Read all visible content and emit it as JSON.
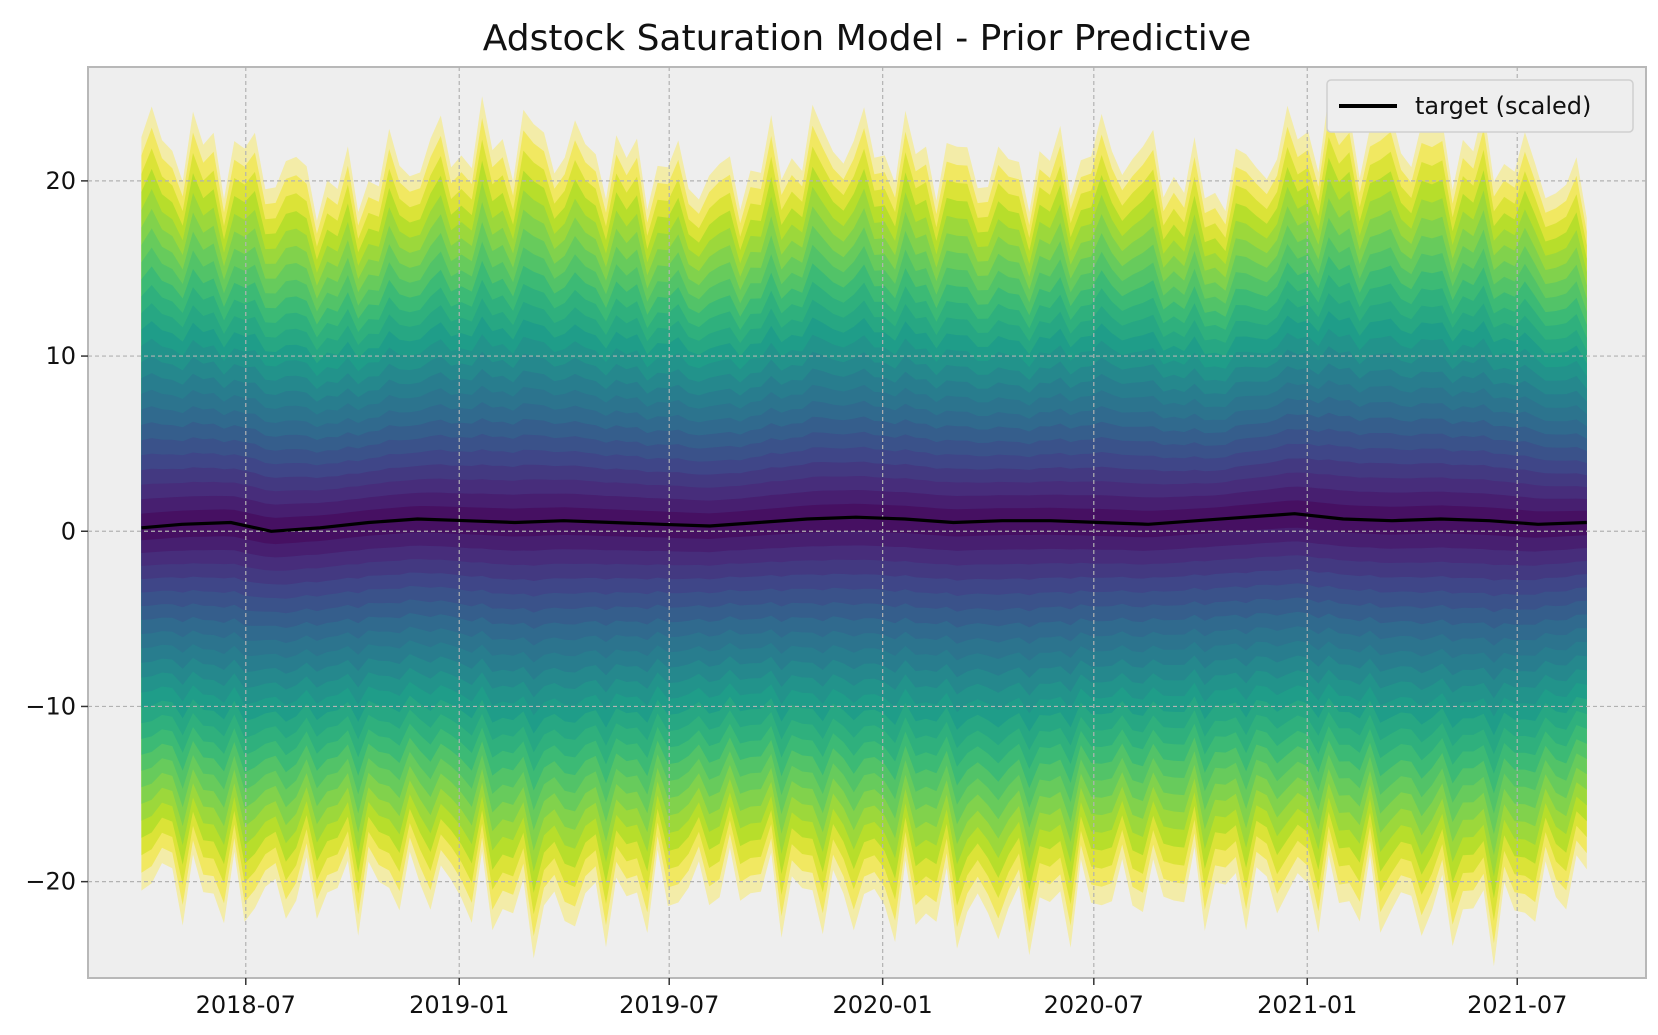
{
  "chart_data": {
    "type": "area",
    "title": "Adstock Saturation Model - Prior Predictive",
    "xlabel": "",
    "ylabel": "",
    "x_axis": {
      "type": "date",
      "range": [
        "2018-02-15",
        "2021-10-20"
      ],
      "ticks": [
        {
          "date": "2018-07-01",
          "label": "2018-07"
        },
        {
          "date": "2019-01-01",
          "label": "2019-01"
        },
        {
          "date": "2019-07-01",
          "label": "2019-07"
        },
        {
          "date": "2020-01-01",
          "label": "2020-01"
        },
        {
          "date": "2020-07-01",
          "label": "2020-07"
        },
        {
          "date": "2021-01-01",
          "label": "2021-01"
        },
        {
          "date": "2021-07-01",
          "label": "2021-07"
        }
      ]
    },
    "y_axis": {
      "range": [
        -25.5,
        26.5
      ],
      "ticks": [
        {
          "value": 20,
          "label": "20"
        },
        {
          "value": 10,
          "label": "10"
        },
        {
          "value": 0,
          "label": "0"
        },
        {
          "value": -10,
          "label": "−10"
        },
        {
          "value": -20,
          "label": "−20"
        }
      ]
    },
    "grid": true,
    "legend": {
      "position": "top-right",
      "entries": [
        {
          "label": "target (scaled)",
          "color": "#000000"
        }
      ]
    },
    "colors": {
      "background": "#eeeeee",
      "grid": "#b2b2b2",
      "band_colormap": "viridis",
      "target_line": "#000000"
    },
    "band": {
      "description_values": "weekly prior predictive HDI envelope, approx. ±20 around target",
      "x": [
        "2018-04-02",
        "2018-06-25",
        "2018-09-17",
        "2018-12-10",
        "2019-03-04",
        "2019-05-27",
        "2019-08-19",
        "2019-11-11",
        "2020-02-03",
        "2020-04-27",
        "2020-07-20",
        "2020-10-12",
        "2021-01-04",
        "2021-03-29",
        "2021-06-21",
        "2021-08-30"
      ],
      "upper": [
        22.5,
        21.5,
        19.5,
        21.8,
        22.5,
        21.0,
        20.0,
        22.5,
        21.5,
        20.5,
        22.0,
        19.5,
        23.0,
        22.5,
        21.5,
        19.0
      ],
      "lower": [
        -19.5,
        -21.0,
        -20.5,
        -20.0,
        -22.0,
        -21.0,
        -20.0,
        -21.0,
        -21.5,
        -22.0,
        -20.5,
        -20.5,
        -20.5,
        -21.5,
        -22.0,
        -19.5
      ]
    },
    "series": [
      {
        "name": "target (scaled)",
        "x": [
          "2018-04-02",
          "2018-05-07",
          "2018-06-18",
          "2018-07-23",
          "2018-09-03",
          "2018-10-15",
          "2018-11-26",
          "2019-01-07",
          "2019-02-18",
          "2019-04-01",
          "2019-05-13",
          "2019-06-24",
          "2019-08-05",
          "2019-09-16",
          "2019-10-28",
          "2019-12-09",
          "2020-01-20",
          "2020-03-02",
          "2020-04-13",
          "2020-05-25",
          "2020-07-06",
          "2020-08-17",
          "2020-09-28",
          "2020-11-09",
          "2020-12-21",
          "2021-02-01",
          "2021-03-15",
          "2021-04-26",
          "2021-06-07",
          "2021-07-19",
          "2021-08-30"
        ],
        "y": [
          0.2,
          0.4,
          0.5,
          0.0,
          0.2,
          0.5,
          0.7,
          0.6,
          0.5,
          0.6,
          0.5,
          0.4,
          0.3,
          0.5,
          0.7,
          0.8,
          0.7,
          0.5,
          0.6,
          0.6,
          0.5,
          0.4,
          0.6,
          0.8,
          1.0,
          0.7,
          0.6,
          0.7,
          0.6,
          0.4,
          0.5
        ]
      }
    ]
  }
}
